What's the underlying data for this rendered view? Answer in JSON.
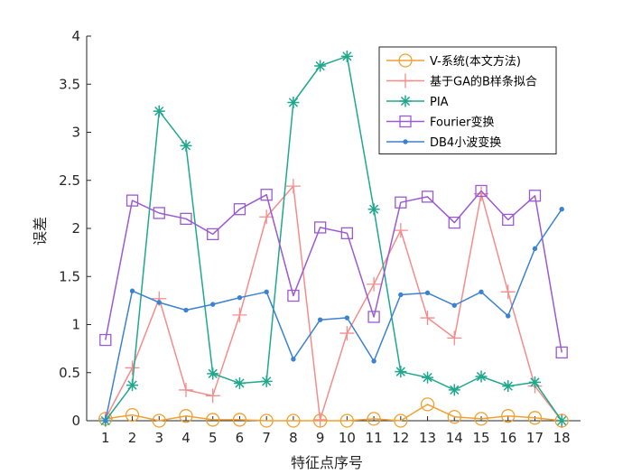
{
  "chart_data": {
    "type": "line",
    "title": "",
    "xlabel": "特征点序号",
    "ylabel": "误差",
    "x": [
      1,
      2,
      3,
      4,
      5,
      6,
      7,
      8,
      9,
      10,
      11,
      12,
      13,
      14,
      15,
      16,
      17,
      18
    ],
    "xlim": [
      0.3,
      18.7
    ],
    "ylim": [
      0,
      4
    ],
    "yticks": [
      0,
      0.5,
      1,
      1.5,
      2,
      2.5,
      3,
      3.5,
      4
    ],
    "ytick_labels": [
      "0",
      "0.5",
      "1",
      "1.5",
      "2",
      "2.5",
      "3",
      "3.5",
      "4"
    ],
    "grid": false,
    "legend_position": "top-right",
    "series": [
      {
        "name": "V-系统(本文方法)",
        "color": "#f0a030",
        "marker": "circle",
        "values": [
          0.02,
          0.06,
          0.0,
          0.05,
          0.01,
          0.01,
          0.0,
          0.0,
          0.0,
          0.0,
          0.02,
          0.0,
          0.17,
          0.04,
          0.02,
          0.05,
          0.03,
          0.0
        ]
      },
      {
        "name": "基于GA的B样条拟合",
        "color": "#f58c8c",
        "marker": "plus",
        "values": [
          0.02,
          0.55,
          1.27,
          0.32,
          0.26,
          1.1,
          2.12,
          2.44,
          0.01,
          0.91,
          1.42,
          1.98,
          1.07,
          0.86,
          2.36,
          1.34,
          0.36,
          0.0
        ]
      },
      {
        "name": "PIA",
        "color": "#20a88c",
        "marker": "asterisk",
        "values": [
          0.0,
          0.37,
          3.22,
          2.86,
          0.49,
          0.39,
          0.41,
          3.31,
          3.69,
          3.79,
          2.2,
          0.51,
          0.45,
          0.32,
          0.46,
          0.36,
          0.4,
          0.0
        ]
      },
      {
        "name": "Fourier变换",
        "color": "#9a5ad2",
        "marker": "square",
        "values": [
          0.84,
          2.29,
          2.16,
          2.1,
          1.94,
          2.2,
          2.35,
          1.3,
          2.01,
          1.95,
          1.08,
          2.27,
          2.33,
          2.06,
          2.39,
          2.09,
          2.34,
          0.71
        ]
      },
      {
        "name": "DB4小波变换",
        "color": "#3c82d2",
        "marker": "dot",
        "values": [
          0.0,
          1.35,
          1.23,
          1.15,
          1.21,
          1.28,
          1.34,
          0.64,
          1.05,
          1.07,
          0.62,
          1.31,
          1.33,
          1.2,
          1.34,
          1.09,
          1.79,
          2.2
        ]
      }
    ]
  }
}
